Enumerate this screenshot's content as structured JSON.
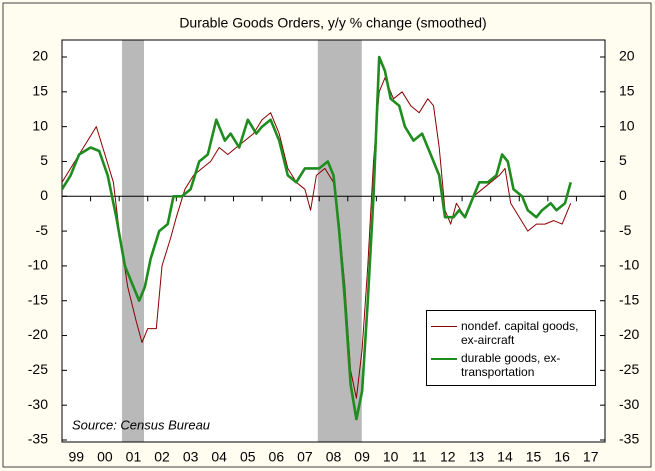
{
  "chart_data": {
    "type": "line",
    "title": "Durable Goods Orders, y/y % change (smoothed)",
    "annotation": "Source: Census Bureau",
    "xlim": [
      1999,
      2018
    ],
    "xticks": [
      {
        "value": 1999.5,
        "label": "99"
      },
      {
        "value": 2000.5,
        "label": "00"
      },
      {
        "value": 2001.5,
        "label": "01"
      },
      {
        "value": 2002.5,
        "label": "02"
      },
      {
        "value": 2003.5,
        "label": "03"
      },
      {
        "value": 2004.5,
        "label": "04"
      },
      {
        "value": 2005.5,
        "label": "05"
      },
      {
        "value": 2006.5,
        "label": "06"
      },
      {
        "value": 2007.5,
        "label": "07"
      },
      {
        "value": 2008.5,
        "label": "08"
      },
      {
        "value": 2009.5,
        "label": "09"
      },
      {
        "value": 2010.5,
        "label": "10"
      },
      {
        "value": 2011.5,
        "label": "11"
      },
      {
        "value": 2012.5,
        "label": "12"
      },
      {
        "value": 2013.5,
        "label": "13"
      },
      {
        "value": 2014.5,
        "label": "14"
      },
      {
        "value": 2015.5,
        "label": "15"
      },
      {
        "value": 2016.5,
        "label": "16"
      },
      {
        "value": 2017.5,
        "label": "17"
      }
    ],
    "ylim": [
      -35,
      20
    ],
    "yticks": [
      20,
      15,
      10,
      5,
      0,
      -5,
      -10,
      -15,
      -20,
      -25,
      -30,
      -35
    ],
    "recessions": [
      [
        2001.1,
        2001.87
      ],
      [
        2007.95,
        2009.49
      ]
    ],
    "recession_color": "#b9b9b9",
    "series": [
      {
        "name": "nondef. capital goods, ex-aircraft",
        "color": "#8b0000",
        "width": 1,
        "x": [
          1999.0,
          1999.3,
          1999.6,
          1999.9,
          2000.2,
          2000.5,
          2000.8,
          2001.0,
          2001.3,
          2001.6,
          2001.8,
          2002.0,
          2002.3,
          2002.5,
          2002.8,
          2003.0,
          2003.3,
          2003.6,
          2003.9,
          2004.2,
          2004.5,
          2004.8,
          2005.1,
          2005.4,
          2005.7,
          2006.0,
          2006.3,
          2006.6,
          2006.9,
          2007.2,
          2007.5,
          2007.7,
          2007.9,
          2008.2,
          2008.5,
          2008.7,
          2008.9,
          2009.1,
          2009.3,
          2009.5,
          2009.7,
          2009.9,
          2010.1,
          2010.3,
          2010.6,
          2010.9,
          2011.2,
          2011.5,
          2011.8,
          2012.0,
          2012.2,
          2012.4,
          2012.6,
          2012.8,
          2013.1,
          2013.4,
          2013.7,
          2014.0,
          2014.3,
          2014.5,
          2014.7,
          2015.0,
          2015.3,
          2015.6,
          2015.9,
          2016.2,
          2016.5,
          2016.8
        ],
        "values": [
          2,
          4,
          6,
          8,
          10,
          6,
          2,
          -5,
          -13,
          -18,
          -21,
          -19,
          -19,
          -10,
          -6,
          -3,
          1,
          3,
          4,
          5,
          7,
          6,
          7,
          8,
          9,
          11,
          12,
          9,
          4,
          2,
          1,
          -2,
          3,
          4,
          2,
          -4,
          -13,
          -25,
          -29,
          -22,
          -10,
          5,
          15,
          17,
          14,
          15,
          13,
          12,
          14,
          13,
          7,
          -2,
          -4,
          -1,
          -3,
          0,
          1,
          2,
          3,
          4,
          -1,
          -3,
          -5,
          -4,
          -4,
          -3.5,
          -4,
          -1
        ]
      },
      {
        "name": "durable goods, ex-transportation",
        "color": "#1e8c1e",
        "width": 2.6,
        "x": [
          1999.0,
          1999.3,
          1999.6,
          2000.0,
          2000.3,
          2000.6,
          2000.9,
          2001.2,
          2001.5,
          2001.7,
          2001.9,
          2002.1,
          2002.4,
          2002.7,
          2002.9,
          2003.2,
          2003.5,
          2003.8,
          2004.1,
          2004.4,
          2004.7,
          2004.9,
          2005.2,
          2005.5,
          2005.8,
          2006.0,
          2006.3,
          2006.6,
          2006.9,
          2007.2,
          2007.5,
          2007.8,
          2008.0,
          2008.3,
          2008.5,
          2008.7,
          2008.9,
          2009.1,
          2009.3,
          2009.5,
          2009.7,
          2009.9,
          2010.1,
          2010.3,
          2010.5,
          2010.8,
          2011.0,
          2011.3,
          2011.6,
          2011.9,
          2012.2,
          2012.4,
          2012.7,
          2012.9,
          2013.1,
          2013.3,
          2013.6,
          2013.9,
          2014.2,
          2014.4,
          2014.6,
          2014.8,
          2015.1,
          2015.3,
          2015.6,
          2015.8,
          2016.1,
          2016.3,
          2016.6,
          2016.8
        ],
        "values": [
          1,
          3,
          6,
          7,
          6.5,
          3,
          -3,
          -10,
          -13,
          -15,
          -13,
          -9,
          -5,
          -4,
          0,
          0,
          1,
          5,
          6,
          11,
          8,
          9,
          7,
          11,
          9,
          10,
          11,
          8,
          3,
          2,
          4,
          4,
          4,
          5,
          3,
          -5,
          -15,
          -27,
          -32,
          -28,
          -15,
          0,
          20,
          18,
          14,
          13,
          10,
          8,
          9,
          6,
          3,
          -3,
          -3,
          -2,
          -3,
          -1,
          2,
          2,
          3,
          6,
          5,
          1,
          0,
          -2,
          -3,
          -2,
          -1,
          -2,
          -1,
          2
        ]
      }
    ]
  }
}
